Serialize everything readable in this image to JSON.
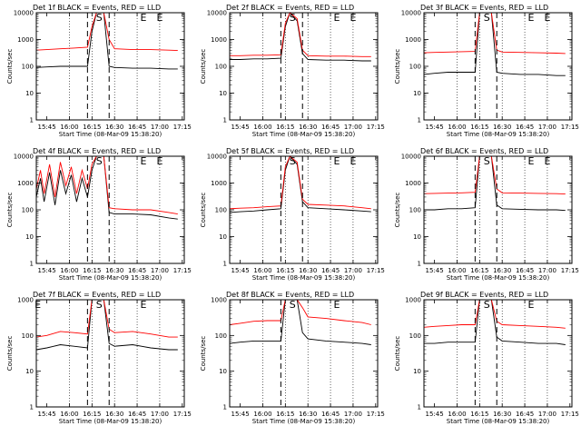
{
  "figure": {
    "xlabel": "Start Time (08-Mar-09 15:38:20)",
    "ylabel": "Counts/sec",
    "legend_text": "BLACK = Events, RED = LLD",
    "x_tick_labels": [
      "15:45",
      "16:00",
      "16:15",
      "16:30",
      "16:45",
      "17:00",
      "17:15"
    ],
    "y_tick_labels": [
      "1",
      "10",
      "100",
      "1000",
      "10000"
    ],
    "colors": {
      "events": "#000000",
      "lld": "#ff0000",
      "axes": "#000000"
    }
  },
  "chart_data": [
    {
      "type": "line",
      "title": "Det 1f BLACK = Events, RED = LLD",
      "detector": "1f",
      "x_unit": "minutes",
      "xlim": [
        15.6333,
        17.2722
      ],
      "ylim": [
        1,
        10000
      ],
      "ylog": true,
      "x_labels": [
        "15:45",
        "16:00",
        "16:15",
        "16:30",
        "16:45",
        "17:00",
        "17:15"
      ],
      "y_labels": [
        "1",
        "10",
        "100",
        "1000",
        "10000"
      ],
      "markers": [
        {
          "label": "S",
          "x": 16.33
        },
        {
          "label": "E",
          "x": 16.82
        },
        {
          "label": "E",
          "x": 17.0
        }
      ],
      "vlines_dashed": [
        16.2,
        16.44
      ],
      "series": [
        {
          "name": "Events",
          "color": "#000000",
          "x": [
            15.633,
            15.75,
            15.9,
            16.05,
            16.2,
            16.25,
            16.3,
            16.38,
            16.44,
            16.5,
            16.7,
            16.9,
            17.1,
            17.2
          ],
          "y": [
            90,
            95,
            100,
            100,
            100,
            2000,
            10000,
            10000,
            100,
            90,
            85,
            85,
            80,
            80
          ]
        },
        {
          "name": "LLD",
          "color": "#ff0000",
          "x": [
            15.633,
            15.75,
            15.9,
            16.05,
            16.2,
            16.25,
            16.3,
            16.38,
            16.44,
            16.5,
            16.7,
            16.9,
            17.1,
            17.2
          ],
          "y": [
            400,
            420,
            450,
            480,
            520,
            3000,
            10000,
            10000,
            1000,
            450,
            420,
            420,
            400,
            390
          ]
        }
      ]
    },
    {
      "type": "line",
      "title": "Det 2f BLACK = Events, RED = LLD",
      "detector": "2f",
      "x_unit": "minutes",
      "xlim": [
        15.6333,
        17.2722
      ],
      "ylim": [
        1,
        10000
      ],
      "ylog": true,
      "x_labels": [
        "15:45",
        "16:00",
        "16:15",
        "16:30",
        "16:45",
        "17:00",
        "17:15"
      ],
      "y_labels": [
        "1",
        "10",
        "100",
        "1000",
        "10000"
      ],
      "markers": [
        {
          "label": "S",
          "x": 16.33
        },
        {
          "label": "E",
          "x": 16.82
        },
        {
          "label": "E",
          "x": 17.0
        }
      ],
      "vlines_dashed": [
        16.2,
        16.44
      ],
      "series": [
        {
          "name": "Events",
          "color": "#000000",
          "x": [
            15.633,
            15.75,
            15.9,
            16.05,
            16.2,
            16.25,
            16.3,
            16.38,
            16.44,
            16.5,
            16.7,
            16.9,
            17.1,
            17.2
          ],
          "y": [
            180,
            180,
            190,
            190,
            200,
            3000,
            10000,
            5000,
            300,
            180,
            170,
            170,
            160,
            160
          ]
        },
        {
          "name": "LLD",
          "color": "#ff0000",
          "x": [
            15.633,
            15.75,
            15.9,
            16.05,
            16.2,
            16.25,
            16.3,
            16.38,
            16.44,
            16.5,
            16.7,
            16.9,
            17.1,
            17.2
          ],
          "y": [
            250,
            250,
            260,
            260,
            270,
            4000,
            10000,
            6000,
            400,
            250,
            240,
            240,
            230,
            230
          ]
        }
      ]
    },
    {
      "type": "line",
      "title": "Det 3f BLACK = Events, RED = LLD",
      "detector": "3f",
      "x_unit": "minutes",
      "xlim": [
        15.6333,
        17.2722
      ],
      "ylim": [
        1,
        10000
      ],
      "ylog": true,
      "x_labels": [
        "15:45",
        "16:00",
        "16:15",
        "16:30",
        "16:45",
        "17:00",
        "17:15"
      ],
      "y_labels": [
        "1",
        "10",
        "100",
        "1000",
        "10000"
      ],
      "markers": [
        {
          "label": "S",
          "x": 16.33
        },
        {
          "label": "E",
          "x": 16.82
        },
        {
          "label": "E",
          "x": 17.0
        }
      ],
      "vlines_dashed": [
        16.2,
        16.44
      ],
      "series": [
        {
          "name": "Events",
          "color": "#000000",
          "x": [
            15.633,
            15.75,
            15.9,
            16.05,
            16.2,
            16.25,
            16.3,
            16.38,
            16.44,
            16.5,
            16.7,
            16.9,
            17.1,
            17.2
          ],
          "y": [
            50,
            55,
            60,
            60,
            60,
            10000,
            10000,
            10000,
            60,
            55,
            50,
            50,
            45,
            45
          ]
        },
        {
          "name": "LLD",
          "color": "#ff0000",
          "x": [
            15.633,
            15.75,
            15.9,
            16.05,
            16.2,
            16.25,
            16.3,
            16.38,
            16.44,
            16.5,
            16.7,
            16.9,
            17.1,
            17.2
          ],
          "y": [
            320,
            330,
            340,
            350,
            360,
            10000,
            10000,
            10000,
            400,
            340,
            330,
            320,
            310,
            300
          ]
        }
      ]
    },
    {
      "type": "line",
      "title": "Det 4f BLACK = Events, RED = LLD",
      "detector": "4f",
      "x_unit": "minutes",
      "xlim": [
        15.6333,
        17.2722
      ],
      "ylim": [
        1,
        10000
      ],
      "ylog": true,
      "x_labels": [
        "15:45",
        "16:00",
        "16:15",
        "16:30",
        "16:45",
        "17:00",
        "17:15"
      ],
      "y_labels": [
        "1",
        "10",
        "100",
        "1000",
        "10000"
      ],
      "markers": [
        {
          "label": "S",
          "x": 16.33
        },
        {
          "label": "E",
          "x": 16.82
        },
        {
          "label": "E",
          "x": 17.0
        }
      ],
      "vlines_dashed": [
        16.2,
        16.44
      ],
      "series": [
        {
          "name": "Events",
          "color": "#000000",
          "x": [
            15.633,
            15.68,
            15.72,
            15.78,
            15.84,
            15.9,
            15.96,
            16.02,
            16.08,
            16.14,
            16.2,
            16.25,
            16.3,
            16.38,
            16.44,
            16.5,
            16.7,
            16.9,
            17.1,
            17.2
          ],
          "y": [
            300,
            1500,
            200,
            2500,
            150,
            3000,
            400,
            2000,
            200,
            1500,
            300,
            3000,
            10000,
            10000,
            80,
            70,
            70,
            65,
            50,
            45
          ]
        },
        {
          "name": "LLD",
          "color": "#ff0000",
          "x": [
            15.633,
            15.68,
            15.72,
            15.78,
            15.84,
            15.9,
            15.96,
            16.02,
            16.08,
            16.14,
            16.2,
            16.25,
            16.3,
            16.38,
            16.44,
            16.5,
            16.7,
            16.9,
            17.1,
            17.2
          ],
          "y": [
            600,
            3000,
            400,
            5000,
            300,
            6000,
            800,
            4000,
            400,
            3000,
            600,
            5000,
            10000,
            10000,
            120,
            110,
            100,
            100,
            80,
            70
          ]
        }
      ]
    },
    {
      "type": "line",
      "title": "Det 5f BLACK = Events, RED = LLD",
      "detector": "5f",
      "x_unit": "minutes",
      "xlim": [
        15.6333,
        17.2722
      ],
      "ylim": [
        1,
        10000
      ],
      "ylog": true,
      "x_labels": [
        "15:45",
        "16:00",
        "16:15",
        "16:30",
        "16:45",
        "17:00",
        "17:15"
      ],
      "y_labels": [
        "1",
        "10",
        "100",
        "1000",
        "10000"
      ],
      "markers": [
        {
          "label": "S",
          "x": 16.33
        },
        {
          "label": "E",
          "x": 16.82
        },
        {
          "label": "E",
          "x": 17.0
        }
      ],
      "vlines_dashed": [
        16.2,
        16.44
      ],
      "series": [
        {
          "name": "Events",
          "color": "#000000",
          "x": [
            15.633,
            15.75,
            15.9,
            16.05,
            16.2,
            16.25,
            16.3,
            16.38,
            16.44,
            16.5,
            16.7,
            16.9,
            17.1,
            17.2
          ],
          "y": [
            80,
            85,
            90,
            100,
            110,
            3000,
            10000,
            5000,
            200,
            120,
            110,
            100,
            90,
            85
          ]
        },
        {
          "name": "LLD",
          "color": "#ff0000",
          "x": [
            15.633,
            15.75,
            15.9,
            16.05,
            16.2,
            16.25,
            16.3,
            16.38,
            16.44,
            16.5,
            16.7,
            16.9,
            17.1,
            17.2
          ],
          "y": [
            110,
            115,
            120,
            130,
            140,
            4000,
            10000,
            6000,
            250,
            160,
            150,
            140,
            120,
            110
          ]
        }
      ]
    },
    {
      "type": "line",
      "title": "Det 6f BLACK = Events, RED = LLD",
      "detector": "6f",
      "x_unit": "minutes",
      "xlim": [
        15.6333,
        17.2722
      ],
      "ylim": [
        1,
        10000
      ],
      "ylog": true,
      "x_labels": [
        "15:45",
        "16:00",
        "16:15",
        "16:30",
        "16:45",
        "17:00",
        "17:15"
      ],
      "y_labels": [
        "1",
        "10",
        "100",
        "1000",
        "10000"
      ],
      "markers": [
        {
          "label": "S",
          "x": 16.33
        },
        {
          "label": "E",
          "x": 16.82
        },
        {
          "label": "E",
          "x": 17.0
        }
      ],
      "vlines_dashed": [
        16.2,
        16.44
      ],
      "series": [
        {
          "name": "Events",
          "color": "#000000",
          "x": [
            15.633,
            15.75,
            15.9,
            16.05,
            16.2,
            16.25,
            16.3,
            16.38,
            16.44,
            16.5,
            16.7,
            16.9,
            17.1,
            17.2
          ],
          "y": [
            100,
            100,
            110,
            110,
            120,
            10000,
            10000,
            10000,
            150,
            110,
            105,
            100,
            100,
            95
          ]
        },
        {
          "name": "LLD",
          "color": "#ff0000",
          "x": [
            15.633,
            15.75,
            15.9,
            16.05,
            16.2,
            16.25,
            16.3,
            16.38,
            16.44,
            16.5,
            16.7,
            16.9,
            17.1,
            17.2
          ],
          "y": [
            400,
            410,
            420,
            430,
            450,
            10000,
            10000,
            10000,
            600,
            430,
            420,
            410,
            400,
            390
          ]
        }
      ]
    },
    {
      "type": "line",
      "title": "Det 7f BLACK = Events, RED = LLD",
      "detector": "7f",
      "x_unit": "minutes",
      "xlim": [
        15.6333,
        17.2722
      ],
      "ylim": [
        1,
        1000
      ],
      "ylog": true,
      "x_labels": [
        "15:45",
        "16:00",
        "16:15",
        "16:30",
        "16:45",
        "17:00",
        "17:15"
      ],
      "y_labels": [
        "1",
        "10",
        "100",
        "1000"
      ],
      "markers": [
        {
          "label": "E",
          "x": 15.65
        },
        {
          "label": "S",
          "x": 16.33
        },
        {
          "label": "E",
          "x": 16.82
        }
      ],
      "vlines_dashed": [
        16.2,
        16.44
      ],
      "series": [
        {
          "name": "Events",
          "color": "#000000",
          "x": [
            15.633,
            15.75,
            15.9,
            16.05,
            16.2,
            16.25,
            16.3,
            16.38,
            16.44,
            16.5,
            16.7,
            16.9,
            17.1,
            17.2
          ],
          "y": [
            40,
            45,
            55,
            50,
            45,
            1000,
            1000,
            1000,
            60,
            50,
            55,
            45,
            40,
            40
          ]
        },
        {
          "name": "LLD",
          "color": "#ff0000",
          "x": [
            15.633,
            15.75,
            15.9,
            16.05,
            16.2,
            16.25,
            16.3,
            16.38,
            16.44,
            16.5,
            16.7,
            16.9,
            17.1,
            17.2
          ],
          "y": [
            90,
            100,
            130,
            120,
            110,
            1000,
            1000,
            1000,
            150,
            120,
            130,
            110,
            90,
            90
          ]
        }
      ]
    },
    {
      "type": "line",
      "title": "Det 8f BLACK = Events, RED = LLD",
      "detector": "8f",
      "x_unit": "minutes",
      "xlim": [
        15.6333,
        17.2722
      ],
      "ylim": [
        1,
        1000
      ],
      "ylog": true,
      "x_labels": [
        "15:45",
        "16:00",
        "16:15",
        "16:30",
        "16:45",
        "17:00",
        "17:15"
      ],
      "y_labels": [
        "1",
        "10",
        "100",
        "1000"
      ],
      "markers": [
        {
          "label": "S",
          "x": 16.33
        },
        {
          "label": "E",
          "x": 16.82
        }
      ],
      "vlines_dashed": [
        16.2
      ],
      "series": [
        {
          "name": "Events",
          "color": "#000000",
          "x": [
            15.633,
            15.75,
            15.9,
            16.05,
            16.2,
            16.25,
            16.3,
            16.38,
            16.44,
            16.5,
            16.7,
            16.9,
            17.1,
            17.2
          ],
          "y": [
            60,
            65,
            70,
            70,
            70,
            1000,
            1000,
            1000,
            120,
            80,
            70,
            65,
            60,
            55
          ]
        },
        {
          "name": "LLD",
          "color": "#ff0000",
          "x": [
            15.633,
            15.75,
            15.9,
            16.05,
            16.2,
            16.25,
            16.3,
            16.38,
            16.44,
            16.5,
            16.7,
            16.9,
            17.1,
            17.2
          ],
          "y": [
            200,
            220,
            250,
            260,
            260,
            1000,
            1000,
            1000,
            600,
            330,
            300,
            260,
            230,
            200
          ]
        }
      ]
    },
    {
      "type": "line",
      "title": "Det 9f BLACK = Events, RED = LLD",
      "detector": "9f",
      "x_unit": "minutes",
      "xlim": [
        15.6333,
        17.2722
      ],
      "ylim": [
        1,
        1000
      ],
      "ylog": true,
      "x_labels": [
        "15:45",
        "16:00",
        "16:15",
        "16:30",
        "16:45",
        "17:00",
        "17:15"
      ],
      "y_labels": [
        "1",
        "10",
        "100",
        "1000"
      ],
      "markers": [
        {
          "label": "S",
          "x": 16.33
        },
        {
          "label": "E",
          "x": 16.82
        }
      ],
      "vlines_dashed": [
        16.2,
        16.44
      ],
      "series": [
        {
          "name": "Events",
          "color": "#000000",
          "x": [
            15.633,
            15.75,
            15.9,
            16.05,
            16.2,
            16.25,
            16.3,
            16.38,
            16.44,
            16.5,
            16.7,
            16.9,
            17.1,
            17.2
          ],
          "y": [
            60,
            60,
            65,
            65,
            65,
            1000,
            1000,
            1000,
            90,
            70,
            65,
            60,
            60,
            55
          ]
        },
        {
          "name": "LLD",
          "color": "#ff0000",
          "x": [
            15.633,
            15.75,
            15.9,
            16.05,
            16.2,
            16.25,
            16.3,
            16.38,
            16.44,
            16.5,
            16.7,
            16.9,
            17.1,
            17.2
          ],
          "y": [
            170,
            180,
            190,
            200,
            200,
            1000,
            1000,
            1000,
            250,
            200,
            190,
            180,
            170,
            160
          ]
        }
      ]
    }
  ]
}
